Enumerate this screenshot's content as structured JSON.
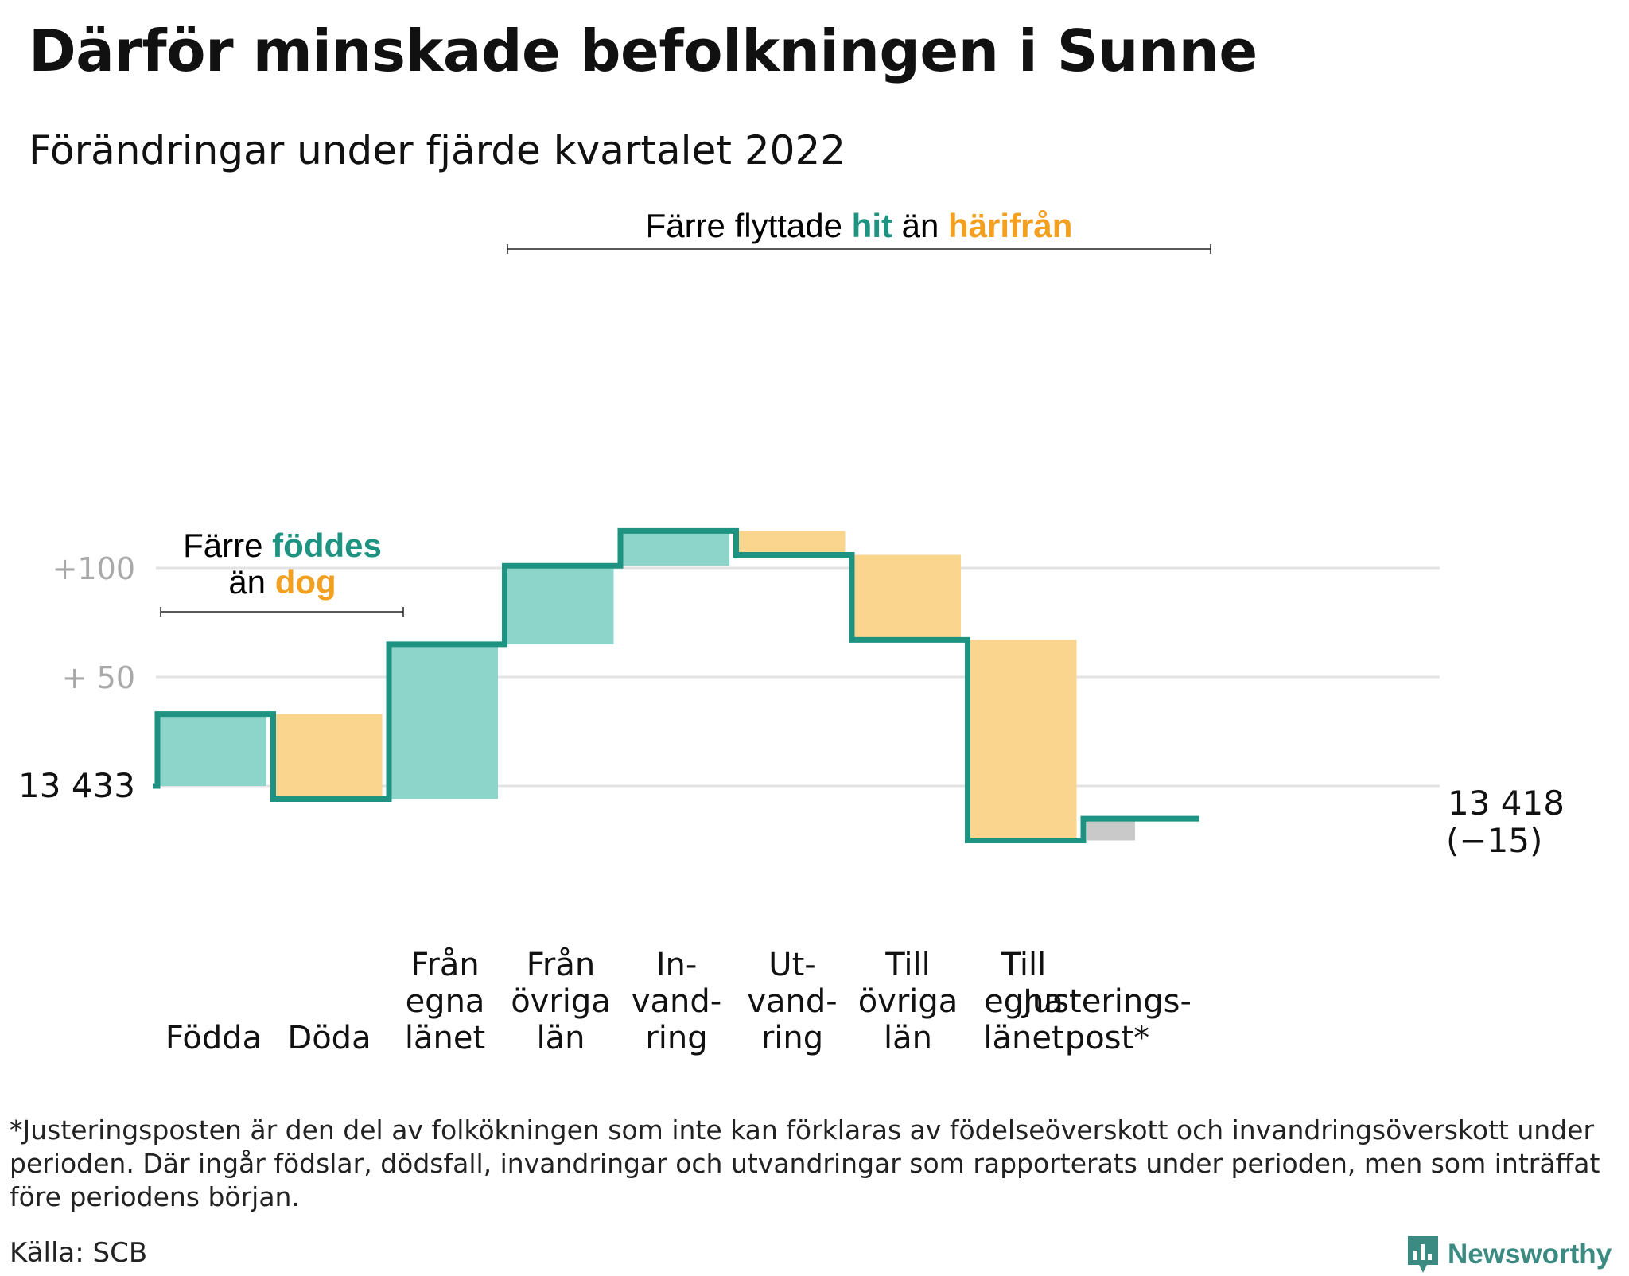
{
  "title": "Därför minskade befolkningen i Sunne",
  "subtitle": "Förändringar under fjärde kvartalet 2022",
  "colors": {
    "increase_fill": "#8dd4cb",
    "decrease_fill": "#f9d58e",
    "adjustment_fill": "#c9c9c9",
    "step_line": "#1e9381",
    "teal_text": "#1e9381",
    "orange_text": "#f3a020",
    "grid": "#e3e3e3",
    "tick_text": "#a9a9a9"
  },
  "annotations": {
    "births_deaths": {
      "line1_prefix": "Färre ",
      "line1_highlight": "föddes",
      "line2_prefix": "än ",
      "line2_highlight": "dog"
    },
    "migration": {
      "prefix": "Färre flyttade ",
      "highlight1": "hit",
      "middle": " än ",
      "highlight2": "härifrån"
    }
  },
  "chart_data": {
    "type": "waterfall",
    "start": {
      "label": "13 433",
      "value": 13433
    },
    "end": {
      "label": "13 418",
      "change_label": "(−15)",
      "value": 13418
    },
    "y_ticks": [
      {
        "label": "+100",
        "offset": 100
      },
      {
        "label": "+ 50",
        "offset": 50
      },
      {
        "label": "13 433",
        "offset": 0
      }
    ],
    "ylim_offset": [
      -25,
      117
    ],
    "grid": true,
    "steps": [
      {
        "label_lines": [
          "Födda"
        ],
        "change": 33,
        "kind": "increase"
      },
      {
        "label_lines": [
          "Döda"
        ],
        "change": -39,
        "kind": "decrease"
      },
      {
        "label_lines": [
          "Från",
          "egna",
          "länet"
        ],
        "change": 71,
        "kind": "increase"
      },
      {
        "label_lines": [
          "Från",
          "övriga",
          "län"
        ],
        "change": 36,
        "kind": "increase"
      },
      {
        "label_lines": [
          "In-",
          "vand-",
          "ring"
        ],
        "change": 16,
        "kind": "increase"
      },
      {
        "label_lines": [
          "Ut-",
          "vand-",
          "ring"
        ],
        "change": -11,
        "kind": "decrease"
      },
      {
        "label_lines": [
          "Till",
          "övriga",
          "län"
        ],
        "change": -39,
        "kind": "decrease"
      },
      {
        "label_lines": [
          "Till",
          "egna",
          "länet"
        ],
        "change": -92,
        "kind": "decrease"
      },
      {
        "label_lines": [
          "Justerings-",
          "post*"
        ],
        "change": 10,
        "kind": "adjustment"
      }
    ]
  },
  "footnote": "*Justeringsposten är den del av folkökningen som inte kan förklaras av födelseöverskott och invandringsöverskott under perioden. Där ingår födslar, dödsfall, invandringar och utvandringar som rapporterats under perioden, men som inträffat före periodens början.",
  "source": "Källa: SCB",
  "brand": {
    "name": "Newsworthy",
    "icon": "newsworthy-logo-icon"
  }
}
